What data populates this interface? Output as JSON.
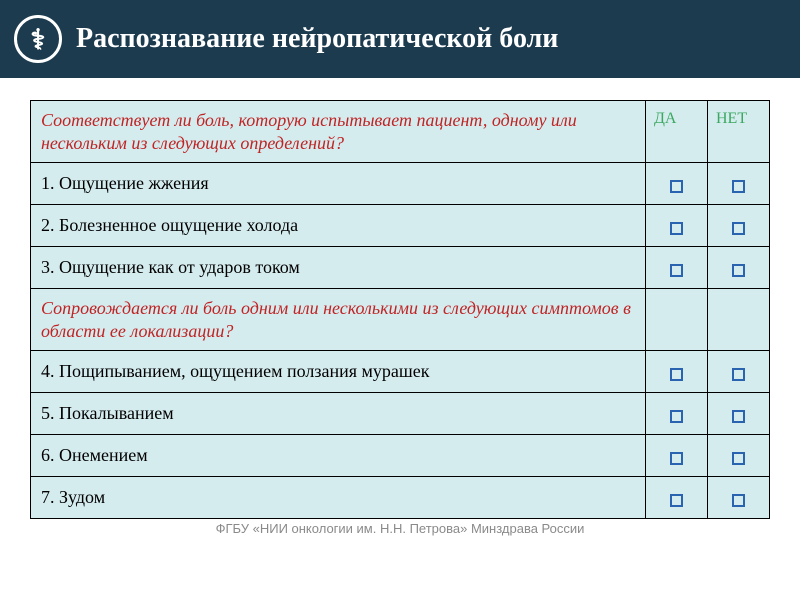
{
  "header": {
    "title": "Распознавание нейропатической боли"
  },
  "columns": {
    "yes": "ДА",
    "no": "НЕТ"
  },
  "section1": {
    "question": "Соответствует ли боль, которую испытывает пациент, одному или нескольким из следующих определений?"
  },
  "section2": {
    "question": "Сопровождается ли боль одним или несколькими из следующих симптомов в области ее локализации?"
  },
  "items": {
    "i1": "1. Ощущение жжения",
    "i2": "2. Болезненное ощущение холода",
    "i3": "3. Ощущение как от ударов током",
    "i4": "4. Пощипыванием, ощущением ползания мурашек",
    "i5": "5. Покалыванием",
    "i6": "6. Онемением",
    "i7": "7. Зудом"
  },
  "footer": "ФГБУ «НИИ онкологии им. Н.Н. Петрова» Минздрава России",
  "colors": {
    "header_bg": "#1c3b4f",
    "cell_bg": "#d5ecef",
    "section_text": "#c02424",
    "yesno_text": "#3aa85f",
    "checkbox_border": "#2a63b0"
  }
}
